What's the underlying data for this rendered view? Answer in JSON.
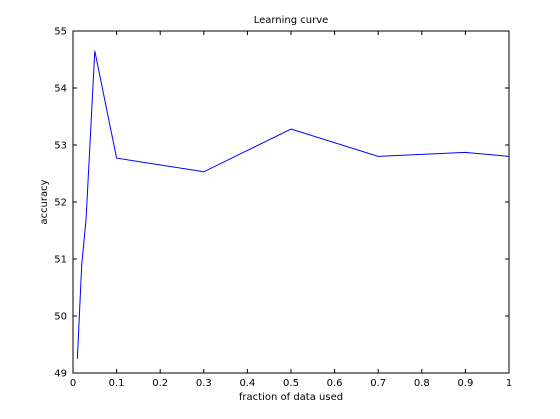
{
  "chart_data": {
    "type": "line",
    "title": "Learning curve",
    "xlabel": "fraction of data used",
    "ylabel": "accuracy",
    "xlim": [
      0,
      1
    ],
    "ylim": [
      49,
      55
    ],
    "xticks": [
      0,
      0.1,
      0.2,
      0.3,
      0.4,
      0.5,
      0.6,
      0.7,
      0.8,
      0.9,
      1
    ],
    "xtick_labels": [
      "0",
      "0.1",
      "0.2",
      "0.3",
      "0.4",
      "0.5",
      "0.6",
      "0.7",
      "0.8",
      "0.9",
      "1"
    ],
    "yticks": [
      49,
      50,
      51,
      52,
      53,
      54,
      55
    ],
    "ytick_labels": [
      "49",
      "50",
      "51",
      "52",
      "53",
      "54",
      "55"
    ],
    "grid": false,
    "line_color": "#0000ff",
    "series": [
      {
        "x": [
          0.01,
          0.02,
          0.03,
          0.05,
          0.1,
          0.3,
          0.5,
          0.7,
          0.9,
          1.0
        ],
        "y": [
          49.25,
          50.9,
          51.7,
          54.65,
          52.77,
          52.53,
          53.28,
          52.8,
          52.87,
          52.8
        ]
      }
    ]
  }
}
